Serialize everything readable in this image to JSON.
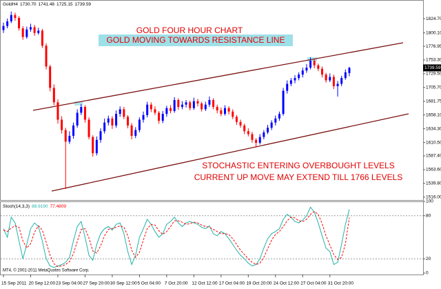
{
  "chart_data": [
    {
      "type": "candlestick",
      "symbol": "GoldH4",
      "last_labels": [
        "1730.70",
        "1741.48",
        "1725.15",
        "1739.59"
      ],
      "title": "GOLD FOUR HOUR CHART",
      "subtitle": "GOLD MOVING TOWARDS RESISTANCE LINE",
      "annotations": [
        "STOCHASTIC ENTERING OVERBOUGHT LEVELS",
        "CURRENT UP MOVE MAY EXTEND TILL 1766 LEVELS"
      ],
      "categories": [
        "15 Sep 2011",
        null,
        null,
        null,
        null,
        null,
        null,
        "20 Sep 12:00",
        null,
        null,
        null,
        null,
        null,
        null,
        "23 Sep 04:00",
        null,
        null,
        null,
        null,
        null,
        null,
        "27 Sep 20:00",
        null,
        null,
        null,
        null,
        null,
        null,
        "30 Sep 12:00",
        null,
        null,
        null,
        null,
        null,
        null,
        "5 Oct 04:00",
        null,
        null,
        null,
        null,
        null,
        null,
        "7 Oct 20:00",
        null,
        null,
        null,
        null,
        null,
        null,
        "12 Oct 12:00",
        null,
        null,
        null,
        null,
        null,
        null,
        "17 Oct 04:00",
        null,
        null,
        null,
        null,
        null,
        null,
        "19 Oct 20:00",
        null,
        null,
        null,
        null,
        null,
        null,
        "24 Oct 12:00",
        null,
        null,
        null,
        null,
        null,
        null,
        "27 Oct 04:00",
        null,
        null,
        null,
        null,
        null,
        null,
        "31 Oct 20:00",
        null,
        null,
        null,
        null,
        null
      ],
      "open": [
        1805,
        1812,
        1820,
        1831,
        1826,
        1808,
        1793,
        1806,
        1810,
        1800,
        1804,
        1778,
        1742,
        1705,
        1680,
        1650,
        1632,
        1612,
        1622,
        1640,
        1662,
        1672,
        1650,
        1620,
        1592,
        1615,
        1630,
        1645,
        1652,
        1640,
        1660,
        1668,
        1655,
        1640,
        1622,
        1632,
        1650,
        1658,
        1676,
        1668,
        1662,
        1648,
        1660,
        1670,
        1665,
        1684,
        1672,
        1676,
        1680,
        1670,
        1682,
        1678,
        1668,
        1676,
        1684,
        1672,
        1666,
        1660,
        1670,
        1664,
        1655,
        1646,
        1640,
        1630,
        1625,
        1615,
        1610,
        1620,
        1628,
        1636,
        1645,
        1652,
        1660,
        1700,
        1712,
        1718,
        1722,
        1728,
        1735,
        1740,
        1752,
        1744,
        1738,
        1728,
        1718,
        1724,
        1708,
        1712,
        1722,
        1730.7
      ],
      "high": [
        1818,
        1825,
        1837,
        1835,
        1829,
        1812,
        1811,
        1816,
        1814,
        1809,
        1807,
        1782,
        1745,
        1711,
        1685,
        1656,
        1636,
        1630,
        1645,
        1668,
        1677,
        1675,
        1654,
        1623,
        1621,
        1635,
        1652,
        1657,
        1656,
        1666,
        1673,
        1672,
        1658,
        1644,
        1637,
        1654,
        1664,
        1681,
        1680,
        1673,
        1665,
        1665,
        1674,
        1675,
        1689,
        1687,
        1682,
        1684,
        1683,
        1688,
        1686,
        1681,
        1681,
        1690,
        1687,
        1676,
        1671,
        1675,
        1673,
        1668,
        1658,
        1650,
        1643,
        1635,
        1629,
        1618,
        1625,
        1632,
        1641,
        1649,
        1657,
        1664,
        1705,
        1718,
        1722,
        1727,
        1732,
        1740,
        1746,
        1758,
        1755,
        1747,
        1742,
        1731,
        1730,
        1728,
        1717,
        1726,
        1737,
        1741.48
      ],
      "low": [
        1800,
        1808,
        1817,
        1821,
        1804,
        1788,
        1790,
        1802,
        1795,
        1797,
        1774,
        1737,
        1699,
        1675,
        1643,
        1626,
        1530,
        1608,
        1617,
        1636,
        1658,
        1645,
        1616,
        1586,
        1588,
        1610,
        1626,
        1640,
        1634,
        1636,
        1655,
        1651,
        1635,
        1616,
        1618,
        1628,
        1645,
        1654,
        1663,
        1658,
        1643,
        1644,
        1655,
        1661,
        1662,
        1667,
        1668,
        1671,
        1666,
        1667,
        1673,
        1664,
        1665,
        1672,
        1668,
        1661,
        1656,
        1657,
        1659,
        1651,
        1641,
        1636,
        1625,
        1621,
        1610,
        1602,
        1607,
        1616,
        1625,
        1632,
        1640,
        1648,
        1657,
        1695,
        1708,
        1713,
        1718,
        1723,
        1731,
        1737,
        1739,
        1734,
        1723,
        1714,
        1715,
        1703,
        1690,
        1708,
        1719,
        1725.15
      ],
      "close": [
        1812,
        1820,
        1831,
        1826,
        1808,
        1793,
        1806,
        1810,
        1800,
        1804,
        1778,
        1742,
        1705,
        1680,
        1650,
        1632,
        1612,
        1622,
        1640,
        1662,
        1672,
        1650,
        1620,
        1592,
        1615,
        1630,
        1645,
        1652,
        1640,
        1660,
        1668,
        1655,
        1640,
        1622,
        1632,
        1650,
        1658,
        1676,
        1668,
        1662,
        1648,
        1660,
        1670,
        1665,
        1684,
        1672,
        1676,
        1680,
        1670,
        1682,
        1678,
        1668,
        1676,
        1684,
        1672,
        1666,
        1660,
        1670,
        1664,
        1655,
        1646,
        1640,
        1630,
        1625,
        1615,
        1610,
        1620,
        1628,
        1636,
        1645,
        1652,
        1660,
        1700,
        1712,
        1718,
        1722,
        1728,
        1735,
        1740,
        1752,
        1744,
        1738,
        1728,
        1718,
        1724,
        1708,
        1712,
        1722,
        1732,
        1739.59
      ],
      "up_color": "#0000ff",
      "down_color": "#ff0000",
      "ylim": [
        1511,
        1857
      ],
      "yticks": [
        {
          "value": 1824.7,
          "label": "1824.70"
        },
        {
          "value": 1800.1,
          "label": "1800.10"
        },
        1776.95,
        {
          "value": 1753.3,
          "label": "1753.30"
        },
        {
          "value": 1729.5,
          "label": "1729.50"
        },
        {
          "value": 1705.7,
          "label": "1705.70"
        },
        1681.75,
        {
          "value": 1658.1,
          "label": "1658.10"
        },
        {
          "value": 1634.3,
          "label": "1634.30"
        },
        {
          "value": 1610.5,
          "label": "1610.50"
        },
        {
          "value": 1587.4,
          "label": "1587.40"
        },
        {
          "value": 1563.6,
          "label": "1563.60"
        },
        {
          "value": 1539.8,
          "label": "1539.80"
        },
        {
          "value": 1516,
          "label": "1516.00"
        }
      ]
    },
    {
      "type": "line",
      "title": "Stoch(14,3,3)",
      "last_labels": [
        "88.9190",
        "77.4809"
      ],
      "series": [
        {
          "color": "#20b2aa",
          "values": [
            62,
            50,
            78,
            70,
            45,
            20,
            40,
            62,
            70,
            65,
            45,
            20,
            10,
            8,
            10,
            12,
            15,
            22,
            45,
            65,
            72,
            50,
            25,
            18,
            40,
            55,
            62,
            65,
            60,
            68,
            70,
            55,
            30,
            12,
            25,
            50,
            62,
            75,
            68,
            58,
            50,
            55,
            68,
            72,
            78,
            70,
            65,
            70,
            72,
            70,
            68,
            64,
            62,
            66,
            55,
            52,
            58,
            55,
            48,
            40,
            32,
            25,
            20,
            14,
            10,
            12,
            20,
            35,
            48,
            55,
            58,
            62,
            75,
            82,
            78,
            72,
            70,
            74,
            80,
            92,
            85,
            70,
            52,
            35,
            30,
            12,
            15,
            40,
            68,
            88.919
          ]
        },
        {
          "color": "#ff0000",
          "dashed": true,
          "values": [
            60,
            58,
            63,
            66,
            64,
            45,
            35,
            41,
            57,
            66,
            60,
            43,
            25,
            13,
            9,
            10,
            12,
            16,
            27,
            44,
            61,
            62,
            49,
            31,
            28,
            38,
            52,
            61,
            62,
            64,
            66,
            64,
            52,
            32,
            22,
            29,
            46,
            62,
            68,
            67,
            59,
            54,
            58,
            65,
            73,
            73,
            71,
            68,
            69,
            71,
            70,
            67,
            65,
            64,
            61,
            58,
            55,
            55,
            54,
            48,
            40,
            32,
            26,
            20,
            15,
            12,
            14,
            22,
            34,
            46,
            54,
            58,
            65,
            73,
            78,
            77,
            73,
            72,
            75,
            82,
            86,
            82,
            69,
            52,
            39,
            26,
            19,
            22,
            41,
            77.4809
          ]
        }
      ],
      "ylim": [
        0,
        100
      ],
      "yticks": [
        100,
        80,
        20,
        0
      ],
      "levels": [
        80,
        20
      ]
    }
  ],
  "footer": "MT4, © 2001-2011 MetaQuotes Software Corp."
}
